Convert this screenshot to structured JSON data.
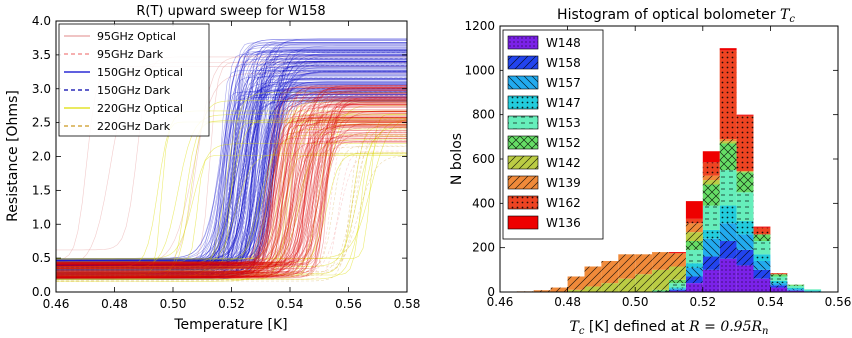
{
  "chart_data": [
    {
      "type": "line",
      "title": "R(T) upward sweep for W158",
      "xlabel": "Temperature [K]",
      "ylabel": "Resistance [Ohms]",
      "xlim": [
        0.46,
        0.58
      ],
      "ylim": [
        0.0,
        4.0
      ],
      "xticks": [
        "0.46",
        "0.48",
        "0.50",
        "0.52",
        "0.54",
        "0.56",
        "0.58"
      ],
      "yticks": [
        "0.0",
        "0.5",
        "1.0",
        "1.5",
        "2.0",
        "2.5",
        "3.0",
        "3.5",
        "4.0"
      ],
      "legend_position": "top-left",
      "grid": false,
      "series": [
        {
          "name": "95GHz Optical",
          "color": "#e8a0a0",
          "dash": "solid",
          "tc_range": [
            0.463,
            0.53
          ],
          "r_low_range": [
            0.3,
            0.65
          ],
          "r_high_range": [
            2.6,
            3.6
          ],
          "curves": 6
        },
        {
          "name": "95GHz Dark",
          "color": "#f08080",
          "dash": "dashed",
          "tc_range": [
            0.54,
            0.56
          ],
          "r_low_range": [
            0.15,
            0.35
          ],
          "r_high_range": [
            2.0,
            2.5
          ],
          "curves": 6
        },
        {
          "name": "150GHz Optical",
          "color": "#0000cc",
          "dash": "solid",
          "tc_range": [
            0.516,
            0.535
          ],
          "r_low_range": [
            0.18,
            0.5
          ],
          "r_high_range": [
            2.8,
            3.75
          ],
          "curves": 140
        },
        {
          "name": "150GHz Dark",
          "color": "#0000aa",
          "dash": "dashed",
          "tc_range": [
            0.52,
            0.535
          ],
          "r_low_range": [
            0.2,
            0.45
          ],
          "r_high_range": [
            2.8,
            3.6
          ],
          "curves": 20
        },
        {
          "name": "220GHz Optical",
          "color": "#dddd00",
          "dash": "solid",
          "tc_range": [
            0.49,
            0.57
          ],
          "r_low_range": [
            0.15,
            0.5
          ],
          "r_high_range": [
            2.0,
            3.0
          ],
          "curves": 30
        },
        {
          "name": "220GHz Dark",
          "color": "#cc9922",
          "dash": "dashed",
          "tc_range": [
            0.54,
            0.565
          ],
          "r_low_range": [
            0.15,
            0.4
          ],
          "r_high_range": [
            2.0,
            2.6
          ],
          "curves": 10
        },
        {
          "name": "",
          "color": "#dd0000",
          "dash": "solid",
          "tc_range": [
            0.532,
            0.553
          ],
          "r_low_range": [
            0.2,
            0.45
          ],
          "r_high_range": [
            2.2,
            3.05
          ],
          "curves": 110
        }
      ]
    },
    {
      "type": "bar",
      "subtype": "stacked-histogram",
      "title": "Histogram of optical bolometer T_c",
      "xlabel": "T_c [K] defined at R = 0.95R_n",
      "ylabel": "N bolos",
      "xlim": [
        0.46,
        0.56
      ],
      "ylim": [
        0,
        1200
      ],
      "xticks": [
        "0.46",
        "0.48",
        "0.50",
        "0.52",
        "0.54",
        "0.56"
      ],
      "yticks": [
        "0",
        "200",
        "400",
        "600",
        "800",
        "1000",
        "1200"
      ],
      "legend_position": "top-left",
      "bin_edges": [
        0.46,
        0.465,
        0.47,
        0.475,
        0.48,
        0.485,
        0.49,
        0.495,
        0.5,
        0.505,
        0.51,
        0.515,
        0.52,
        0.525,
        0.53,
        0.535,
        0.54,
        0.545,
        0.55,
        0.555,
        0.56
      ],
      "series": [
        {
          "name": "W148",
          "color": "#7b22e8",
          "hatch": "dots-small",
          "values": [
            0,
            0,
            0,
            0,
            0,
            0,
            0,
            0,
            0,
            0,
            5,
            40,
            100,
            150,
            120,
            60,
            20,
            5,
            2,
            0
          ]
        },
        {
          "name": "W158",
          "color": "#2244ee",
          "hatch": "diag-back",
          "values": [
            0,
            0,
            0,
            0,
            0,
            0,
            0,
            0,
            0,
            0,
            5,
            30,
            60,
            80,
            70,
            40,
            10,
            3,
            0,
            0
          ]
        },
        {
          "name": "W157",
          "color": "#22aaee",
          "hatch": "diag-fwd",
          "values": [
            0,
            0,
            0,
            0,
            0,
            0,
            0,
            0,
            0,
            0,
            5,
            40,
            80,
            80,
            70,
            40,
            10,
            5,
            2,
            0
          ]
        },
        {
          "name": "W147",
          "color": "#22ccdd",
          "hatch": "dots",
          "values": [
            0,
            0,
            0,
            0,
            0,
            0,
            0,
            0,
            0,
            0,
            5,
            20,
            40,
            80,
            60,
            30,
            10,
            5,
            3,
            0
          ]
        },
        {
          "name": "W153",
          "color": "#66eebb",
          "hatch": "dash",
          "values": [
            0,
            0,
            0,
            0,
            0,
            0,
            0,
            0,
            0,
            5,
            20,
            60,
            110,
            160,
            130,
            60,
            20,
            10,
            5,
            0
          ]
        },
        {
          "name": "W152",
          "color": "#66dd66",
          "hatch": "cross",
          "values": [
            0,
            0,
            0,
            0,
            0,
            0,
            0,
            0,
            0,
            5,
            15,
            40,
            95,
            120,
            90,
            30,
            10,
            5,
            0,
            0
          ]
        },
        {
          "name": "W142",
          "color": "#bbcc44",
          "hatch": "diag-back",
          "values": [
            0,
            0,
            0,
            0,
            10,
            25,
            40,
            60,
            80,
            90,
            60,
            40,
            20,
            10,
            5,
            0,
            0,
            0,
            0,
            0
          ]
        },
        {
          "name": "W139",
          "color": "#f08a3a",
          "hatch": "diag-back",
          "values": [
            0,
            3,
            8,
            20,
            60,
            90,
            100,
            110,
            90,
            80,
            60,
            40,
            20,
            10,
            0,
            0,
            0,
            0,
            0,
            0
          ]
        },
        {
          "name": "W162",
          "color": "#ee4422",
          "hatch": "dots",
          "values": [
            0,
            0,
            0,
            0,
            0,
            0,
            0,
            0,
            0,
            0,
            0,
            20,
            60,
            400,
            250,
            30,
            5,
            0,
            0,
            0
          ]
        },
        {
          "name": "W136",
          "color": "#ee0000",
          "hatch": "none",
          "values": [
            0,
            0,
            0,
            0,
            0,
            0,
            0,
            0,
            0,
            0,
            5,
            80,
            50,
            10,
            5,
            5,
            0,
            0,
            0,
            0
          ]
        }
      ]
    }
  ]
}
